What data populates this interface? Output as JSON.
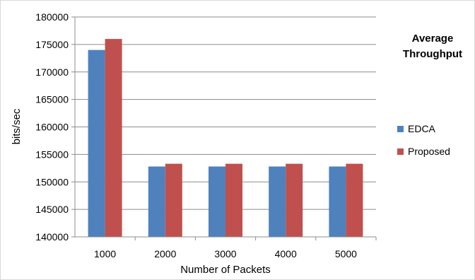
{
  "chart_data": {
    "type": "bar",
    "categories": [
      "1000",
      "2000",
      "3000",
      "4000",
      "5000"
    ],
    "series": [
      {
        "name": "EDCA",
        "values": [
          174000,
          152800,
          152800,
          152800,
          152800
        ],
        "color": "#4f81bd"
      },
      {
        "name": "Proposed",
        "values": [
          176000,
          153300,
          153300,
          153300,
          153300
        ],
        "color": "#c0504d"
      }
    ],
    "title": "",
    "xlabel": "Number of Packets",
    "ylabel": "bits/sec",
    "ylim": [
      140000,
      180000
    ],
    "yticks": [
      140000,
      145000,
      150000,
      155000,
      160000,
      165000,
      170000,
      175000,
      180000
    ],
    "grid": true,
    "legend": {
      "title_lines": [
        "Average",
        "Throughput"
      ],
      "position": "right"
    }
  }
}
